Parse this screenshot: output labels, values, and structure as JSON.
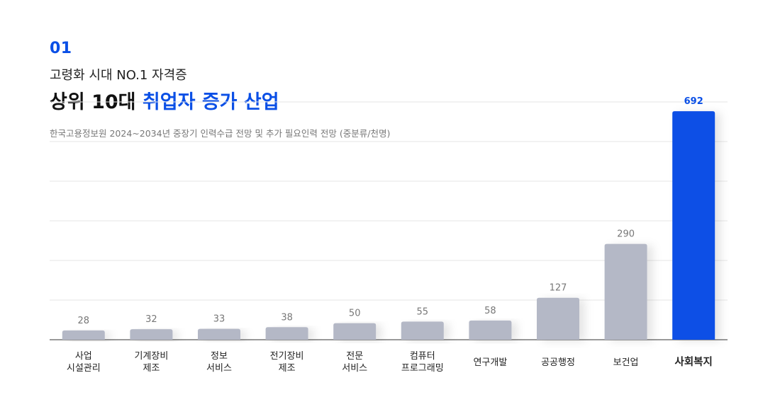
{
  "header": {
    "number": "01",
    "subtitle": "고령화 시대 NO.1 자격증",
    "title_plain": "상위 10대 ",
    "title_highlight": "취업자 증가 산업",
    "source": "한국고용정보원 2024~2034년 중장기 인력수급 전망 및 추가 필요인력 전망 (중분류/천명)"
  },
  "colors": {
    "accent": "#0a4fe6",
    "bar_default": "#b4b8c6",
    "label_value": "#777777",
    "grid": "#e6e6e6"
  },
  "chart_data": {
    "type": "bar",
    "title": "상위 10대 취업자 증가 산업",
    "xlabel": "",
    "ylabel": "",
    "ylim": [
      0,
      720
    ],
    "grid": true,
    "categories": [
      [
        "사업",
        "시설관리"
      ],
      [
        "기계장비",
        "제조"
      ],
      [
        "정보",
        "서비스"
      ],
      [
        "전기장비",
        "제조"
      ],
      [
        "전문",
        "서비스"
      ],
      [
        "컴퓨터",
        "프로그래밍"
      ],
      [
        "연구개발"
      ],
      [
        "공공행정"
      ],
      [
        "보건업"
      ],
      [
        "사회복지"
      ]
    ],
    "values": [
      28,
      32,
      33,
      38,
      50,
      55,
      58,
      127,
      290,
      692
    ],
    "value_labels": [
      "28",
      "32",
      "33",
      "38",
      "50",
      "55",
      "58",
      "127",
      "290",
      "692"
    ],
    "highlight_index": 9
  }
}
